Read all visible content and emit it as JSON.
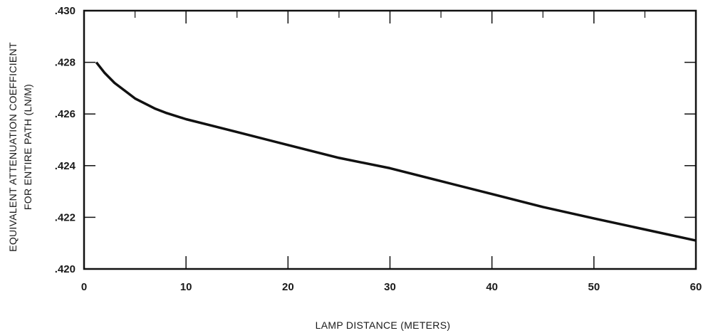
{
  "chart_data": {
    "type": "line",
    "xlabel": "LAMP DISTANCE (METERS)",
    "ylabel_line1": "EQUIVALENT ATTENUATION COEFFICIENT",
    "ylabel_line2": "FOR ENTIRE PATH (LN/M)",
    "xlim": [
      0,
      60
    ],
    "ylim": [
      0.42,
      0.43
    ],
    "x_ticks": [
      0,
      10,
      20,
      30,
      40,
      50,
      60
    ],
    "x_tick_labels": [
      "0",
      "10",
      "20",
      "30",
      "40",
      "50",
      "60"
    ],
    "x_minor_ticks": [
      5,
      15,
      25,
      35,
      45,
      55
    ],
    "y_ticks": [
      0.42,
      0.422,
      0.424,
      0.426,
      0.428,
      0.43
    ],
    "y_tick_labels": [
      ".420",
      ".422",
      ".424",
      ".426",
      ".428",
      ".430"
    ],
    "grid": false,
    "series": [
      {
        "x": [
          1.2,
          2,
          3,
          4,
          5,
          6,
          7,
          8,
          10,
          12,
          15,
          20,
          25,
          30,
          35,
          40,
          45,
          50,
          55,
          60
        ],
        "y": [
          0.428,
          0.4276,
          0.4272,
          0.4269,
          0.4266,
          0.4264,
          0.4262,
          0.42605,
          0.4258,
          0.4256,
          0.4253,
          0.4248,
          0.4243,
          0.4239,
          0.4234,
          0.4229,
          0.4224,
          0.42196,
          0.42153,
          0.4211
        ]
      }
    ],
    "colors": {
      "line": "#111111",
      "axes": "#111111"
    }
  }
}
